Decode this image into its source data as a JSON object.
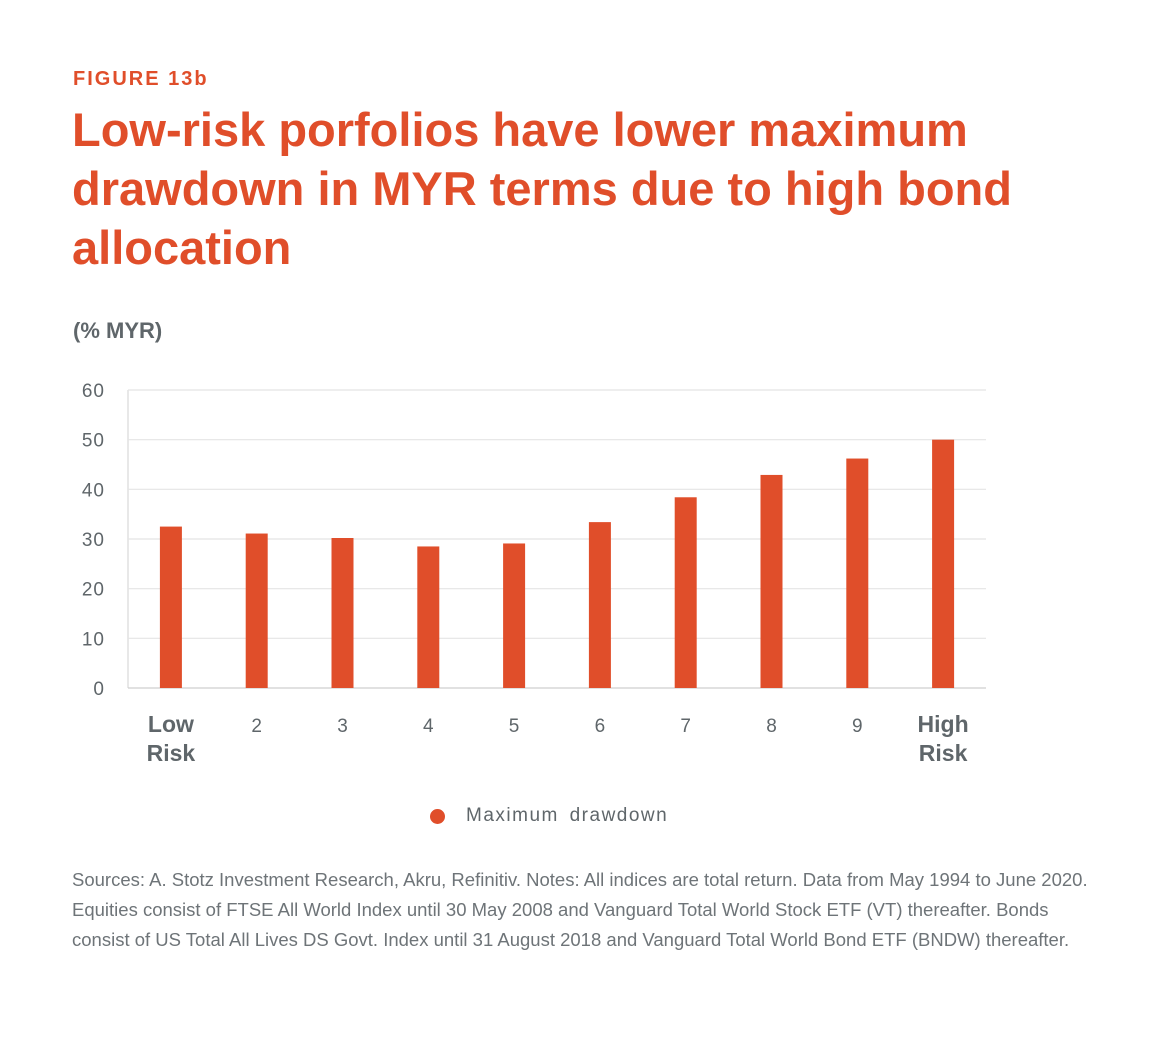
{
  "figure_label": "FIGURE 13b",
  "title": "Low-risk porfolios have lower maximum drawdown in MYR terms due to high bond allocation",
  "unit_label": "(% MYR)",
  "notes": "Sources: A. Stotz Investment Research, Akru, Refinitiv. Notes: All indices are total return. Data from May 1994 to June 2020. Equities consist of FTSE All World Index until 30 May 2008 and Vanguard Total World Stock ETF (VT) thereafter. Bonds consist of US Total All Lives DS Govt. Index until 31 August 2018 and Vanguard Total World Bond ETF (BNDW) thereafter.",
  "legend": {
    "label": "Maximum  drawdown"
  },
  "colors": {
    "accent": "#e04e2a",
    "text_gray": "#5f666a",
    "grid": "#e4e4e4"
  },
  "chart_data": {
    "type": "bar",
    "categories": [
      "Low Risk",
      "2",
      "3",
      "4",
      "5",
      "6",
      "7",
      "8",
      "9",
      "High Risk"
    ],
    "series": [
      {
        "name": "Maximum  drawdown",
        "values": [
          32.5,
          31.1,
          30.2,
          28.5,
          29.1,
          33.4,
          38.4,
          42.9,
          46.2,
          50.0
        ]
      }
    ],
    "ylim": [
      0,
      60
    ],
    "yticks": [
      "0",
      "10",
      "20",
      "30",
      "40",
      "50",
      "60"
    ],
    "grid": true,
    "legend_position": "bottom"
  }
}
